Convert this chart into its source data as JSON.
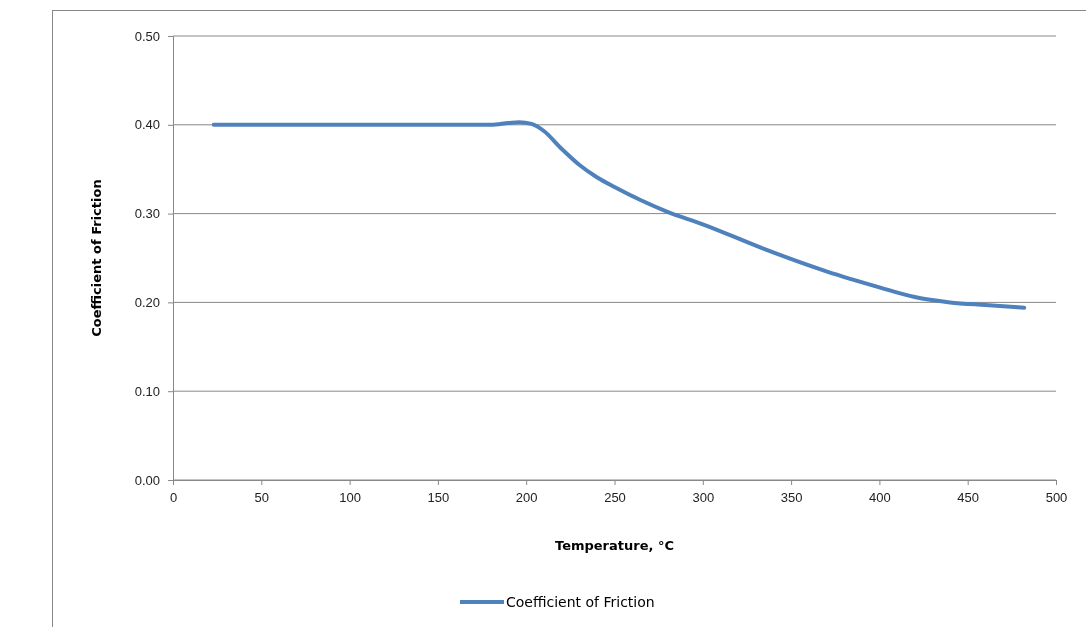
{
  "chart_data": {
    "type": "line",
    "xlabel": "Temperature, °C",
    "ylabel": "Coefficient of Friction",
    "series": [
      {
        "name": "Coefficient of Friction",
        "color": "#4f81bd",
        "x": [
          23,
          60,
          100,
          150,
          180,
          190,
          196,
          203,
          210,
          220,
          230,
          240,
          250,
          265,
          280,
          300,
          335,
          370,
          400,
          420,
          440,
          460,
          482
        ],
        "values": [
          0.4,
          0.4,
          0.4,
          0.4,
          0.4,
          0.402,
          0.403,
          0.401,
          0.393,
          0.373,
          0.355,
          0.341,
          0.33,
          0.315,
          0.302,
          0.288,
          0.26,
          0.235,
          0.217,
          0.206,
          0.2,
          0.197,
          0.194
        ]
      }
    ],
    "xlim": [
      0,
      500
    ],
    "xticks": [
      0,
      50,
      100,
      150,
      200,
      250,
      300,
      350,
      400,
      450,
      500
    ],
    "ylim": [
      0,
      0.5
    ],
    "yticks": [
      {
        "value": 0,
        "label": "0.00"
      },
      {
        "value": 0.1,
        "label": "0.10"
      },
      {
        "value": 0.2,
        "label": "0.20"
      },
      {
        "value": 0.3,
        "label": "0.30"
      },
      {
        "value": 0.4,
        "label": "0.40"
      },
      {
        "value": 0.5,
        "label": "0.50"
      }
    ],
    "grid": "y",
    "legend": "bottom",
    "marker": "none",
    "line_style": "solid"
  }
}
